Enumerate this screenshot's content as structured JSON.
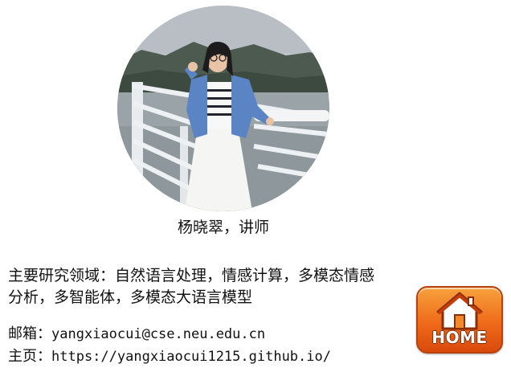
{
  "profile": {
    "caption": "杨晓翠，讲师",
    "research_line1": "主要研究领域：自然语言处理，情感计算，多模态情感",
    "research_line2": "分析，多智能体，多模态大语言模型",
    "email_label": "邮箱：",
    "email_value": "yangxiaocui@cse.neu.edu.cn",
    "homepage_label": "主页：",
    "homepage_value": "https://yangxiaocui1215.github.io/"
  },
  "home_button": {
    "label": "HOME",
    "icon": "house-icon",
    "color": "#ef6a1a"
  },
  "portrait": {
    "icon": "portrait-photo"
  }
}
